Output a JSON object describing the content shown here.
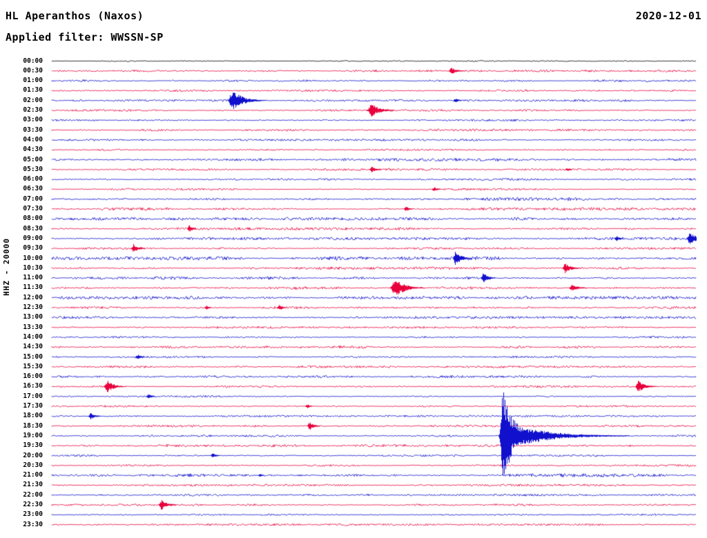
{
  "header": {
    "station_title": "HL Aperanthos (Naxos)",
    "date": "2020-12-01",
    "filter_label": "Applied filter: WWSSN-SP"
  },
  "axis": {
    "channel_label": "HHZ - 20000"
  },
  "chart_data": {
    "type": "helicorder-seismogram",
    "station": "HL Aperanthos (Naxos)",
    "date": "2020-12-01",
    "filter": "WWSSN-SP",
    "channel": "HHZ",
    "scale": 20000,
    "minutes_per_row": 30,
    "row_color_rule": "hh:00 rows blue, hh:30 rows red, first row (00:00) black",
    "colors": {
      "blue": "#1010cd",
      "red": "#e8003c",
      "black": "#000000",
      "background": "#ffffff"
    },
    "black_rows": [
      "00:00"
    ],
    "rows": [
      "00:00",
      "00:30",
      "01:00",
      "01:30",
      "02:00",
      "02:30",
      "03:00",
      "03:30",
      "04:00",
      "04:30",
      "05:00",
      "05:30",
      "06:00",
      "06:30",
      "07:00",
      "07:30",
      "08:00",
      "08:30",
      "09:00",
      "09:30",
      "10:00",
      "10:30",
      "11:00",
      "11:30",
      "12:00",
      "12:30",
      "13:00",
      "13:30",
      "14:00",
      "14:30",
      "15:00",
      "15:30",
      "16:00",
      "16:30",
      "17:00",
      "17:30",
      "18:00",
      "18:30",
      "19:00",
      "19:30",
      "20:00",
      "20:30",
      "21:00",
      "21:30",
      "22:00",
      "22:30",
      "23:00",
      "23:30"
    ],
    "noise_factors": {
      "00:00": 0.8,
      "05:00": 1.5,
      "07:00": 1.5,
      "07:30": 1.4,
      "08:00": 1.5,
      "08:30": 1.3,
      "09:00": 1.3,
      "10:00": 1.7,
      "10:30": 1.3,
      "11:00": 1.4,
      "11:30": 1.4,
      "12:00": 1.5,
      "12:30": 1.3,
      "13:00": 1.2,
      "14:30": 1.3,
      "16:00": 1.2,
      "19:30": 1.3,
      "21:00": 1.6
    },
    "events": [
      {
        "row": "00:30",
        "t_min": 18.6,
        "amp": 4,
        "decay_min": 0.25
      },
      {
        "row": "02:00",
        "t_min": 8.4,
        "amp": 13,
        "rise_min": 0.12,
        "decay_min": 0.45
      },
      {
        "row": "02:00",
        "t_min": 18.8,
        "amp": 2.5,
        "decay_min": 0.15
      },
      {
        "row": "02:30",
        "t_min": 14.9,
        "amp": 8,
        "rise_min": 0.15,
        "decay_min": 0.35
      },
      {
        "row": "05:30",
        "t_min": 14.9,
        "amp": 3.5,
        "decay_min": 0.2
      },
      {
        "row": "05:30",
        "t_min": 24.0,
        "amp": 2,
        "decay_min": 0.15
      },
      {
        "row": "06:30",
        "t_min": 17.8,
        "amp": 2.5,
        "decay_min": 0.15
      },
      {
        "row": "07:30",
        "t_min": 16.5,
        "amp": 3,
        "decay_min": 0.15
      },
      {
        "row": "08:30",
        "t_min": 6.4,
        "amp": 4.5,
        "decay_min": 0.12
      },
      {
        "row": "09:00",
        "t_min": 26.3,
        "amp": 3,
        "decay_min": 0.15
      },
      {
        "row": "09:00",
        "t_min": 29.7,
        "amp": 8,
        "decay_min": 0.3
      },
      {
        "row": "09:30",
        "t_min": 3.8,
        "amp": 5.5,
        "decay_min": 0.2
      },
      {
        "row": "10:00",
        "t_min": 18.8,
        "amp": 9,
        "decay_min": 0.25
      },
      {
        "row": "10:30",
        "t_min": 23.9,
        "amp": 6,
        "decay_min": 0.25
      },
      {
        "row": "11:00",
        "t_min": 20.1,
        "amp": 7,
        "decay_min": 0.2
      },
      {
        "row": "11:30",
        "t_min": 16.0,
        "amp": 12,
        "rise_min": 0.15,
        "decay_min": 0.4
      },
      {
        "row": "11:30",
        "t_min": 24.2,
        "amp": 4,
        "decay_min": 0.3
      },
      {
        "row": "12:30",
        "t_min": 7.2,
        "amp": 2.5,
        "decay_min": 0.12
      },
      {
        "row": "12:30",
        "t_min": 10.6,
        "amp": 3.5,
        "decay_min": 0.15
      },
      {
        "row": "15:00",
        "t_min": 4.0,
        "amp": 3,
        "decay_min": 0.15
      },
      {
        "row": "16:30",
        "t_min": 2.6,
        "amp": 7,
        "rise_min": 0.12,
        "decay_min": 0.3
      },
      {
        "row": "16:30",
        "t_min": 27.3,
        "amp": 7,
        "decay_min": 0.3
      },
      {
        "row": "17:00",
        "t_min": 4.5,
        "amp": 3,
        "decay_min": 0.15
      },
      {
        "row": "17:30",
        "t_min": 11.9,
        "amp": 2.5,
        "decay_min": 0.12
      },
      {
        "row": "18:00",
        "t_min": 1.8,
        "amp": 4,
        "decay_min": 0.2
      },
      {
        "row": "18:30",
        "t_min": 12.0,
        "amp": 5,
        "decay_min": 0.2
      },
      {
        "row": "19:00",
        "t_min": 21.0,
        "amp": 55,
        "rise_min": 0.1,
        "decay_min": 0.5
      },
      {
        "row": "19:00",
        "t_min": 21.8,
        "amp": 12,
        "decay_min": 1.5
      },
      {
        "row": "20:00",
        "t_min": 7.5,
        "amp": 3,
        "decay_min": 0.15
      },
      {
        "row": "21:00",
        "t_min": 9.7,
        "amp": 2,
        "decay_min": 0.12
      },
      {
        "row": "22:30",
        "t_min": 5.1,
        "amp": 6,
        "decay_min": 0.25
      }
    ]
  }
}
